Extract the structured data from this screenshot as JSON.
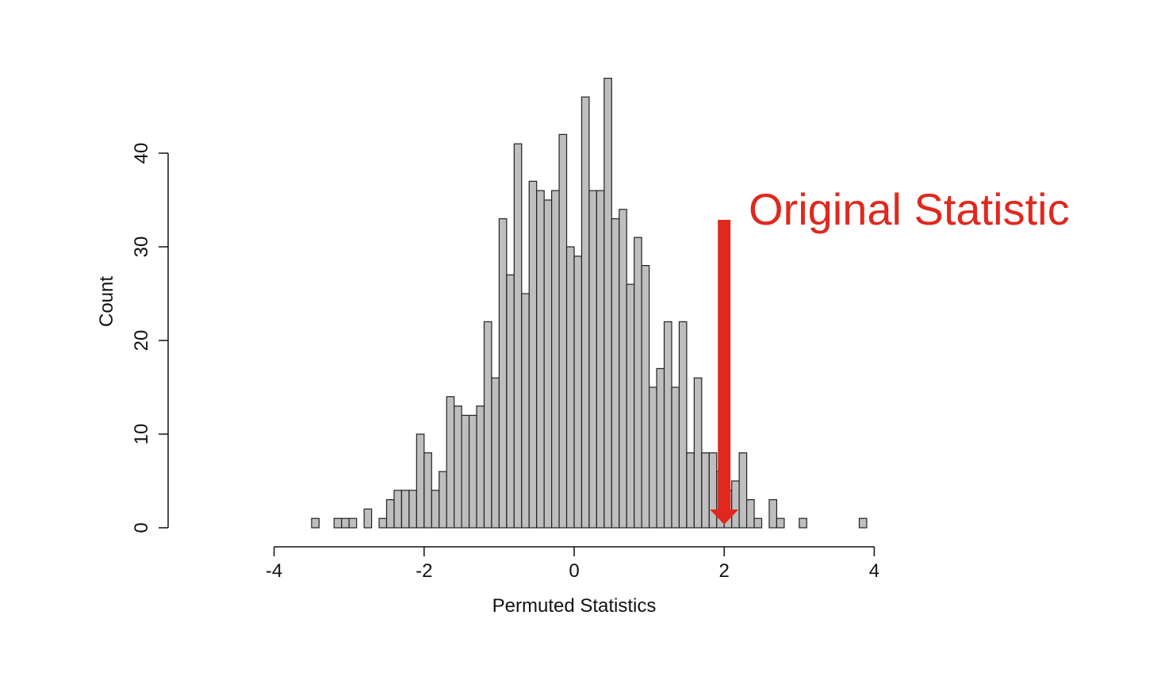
{
  "colors": {
    "bar_fill": "#bebebe",
    "bar_stroke": "#222222",
    "axis": "#111111",
    "annotation": "#e0281e"
  },
  "chart_data": {
    "type": "bar",
    "subtype": "histogram",
    "title": "",
    "xlabel": "Permuted Statistics",
    "ylabel": "Count",
    "xlim": [
      -4,
      4
    ],
    "ylim": [
      0,
      48
    ],
    "bin_width": 0.1,
    "x_ticks": [
      -4,
      -2,
      0,
      2,
      4
    ],
    "x_tick_labels": [
      "-4",
      "-2",
      "0",
      "2",
      "4"
    ],
    "y_ticks": [
      0,
      10,
      20,
      30,
      40
    ],
    "y_tick_labels": [
      "0",
      "10",
      "20",
      "30",
      "40"
    ],
    "grid": false,
    "bin_starts": [
      -3.5,
      -3.4,
      -3.3,
      -3.2,
      -3.1,
      -3.0,
      -2.9,
      -2.8,
      -2.7,
      -2.6,
      -2.5,
      -2.4,
      -2.3,
      -2.2,
      -2.1,
      -2.0,
      -1.9,
      -1.8,
      -1.7,
      -1.6,
      -1.5,
      -1.4,
      -1.3,
      -1.2,
      -1.1,
      -1.0,
      -0.9,
      -0.8,
      -0.7,
      -0.6,
      -0.5,
      -0.4,
      -0.3,
      -0.2,
      -0.1,
      0.0,
      0.1,
      0.2,
      0.3,
      0.4,
      0.5,
      0.6,
      0.7,
      0.8,
      0.9,
      1.0,
      1.1,
      1.2,
      1.3,
      1.4,
      1.5,
      1.6,
      1.7,
      1.8,
      1.9,
      2.0,
      2.1,
      2.2,
      2.3,
      2.4,
      2.5,
      2.6,
      2.7,
      2.8,
      2.9,
      3.0,
      3.1,
      3.2,
      3.3,
      3.4,
      3.5,
      3.6,
      3.7,
      3.8
    ],
    "values": [
      1,
      0,
      0,
      1,
      1,
      1,
      0,
      2,
      0,
      1,
      3,
      4,
      4,
      4,
      10,
      8,
      4,
      6,
      14,
      13,
      12,
      12,
      13,
      22,
      16,
      33,
      27,
      41,
      25,
      37,
      36,
      35,
      36,
      42,
      30,
      29,
      46,
      36,
      36,
      48,
      33,
      34,
      26,
      31,
      28,
      15,
      17,
      22,
      15,
      22,
      8,
      16,
      8,
      8,
      6,
      4,
      5,
      8,
      3,
      1,
      0,
      3,
      1,
      0,
      0,
      1,
      0,
      0,
      0,
      0,
      0,
      0,
      0,
      1
    ],
    "annotations": [
      {
        "text": "Original Statistic",
        "x": 2.0,
        "type": "arrow-down"
      }
    ]
  }
}
